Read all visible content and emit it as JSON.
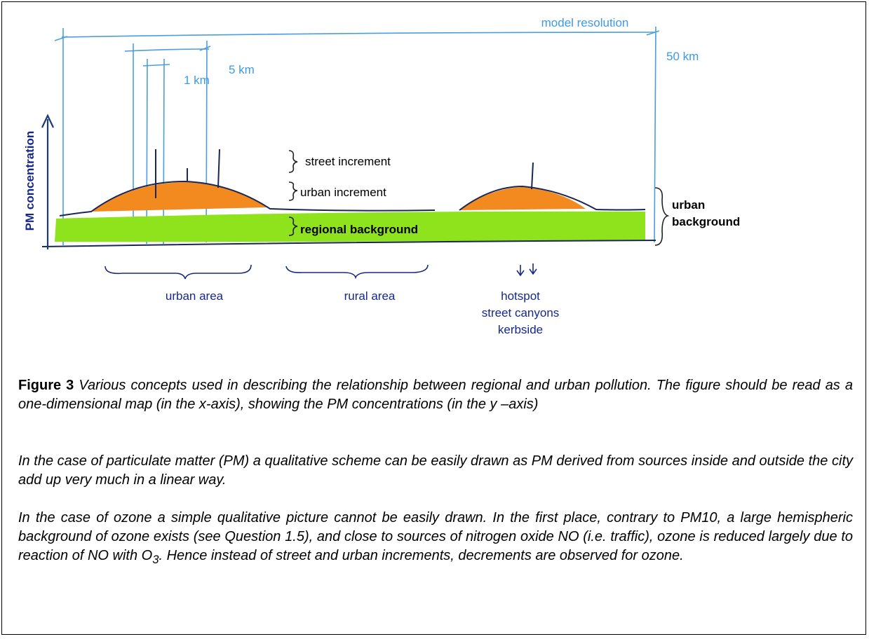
{
  "diagram": {
    "axis_label": "PM concentration",
    "model_resolution": "model resolution",
    "resolution_50km": "50 km",
    "resolution_5km": "5 km",
    "resolution_1km": "1 km",
    "street_increment": "street increment",
    "urban_increment": "urban increment",
    "regional_background": "regional background",
    "urban_background": [
      "urban",
      "background"
    ],
    "urban_area": "urban area",
    "rural_area": "rural area",
    "hotspot": [
      "hotspot",
      "street canyons",
      "kerbside"
    ]
  },
  "caption": {
    "label": "Figure 3",
    "text": "Various concepts used in describing the relationship between regional and urban pollution. The figure should be read as a one-dimensional map (in the x-axis), showing the PM concentrations (in the y –axis)"
  },
  "paragraphs": [
    {
      "text": "In the case of particulate matter (PM) a qualitative scheme can be easily drawn as PM derived from sources inside and outside the city add up very much in a linear way."
    },
    {
      "text": "In the case of ozone a simple qualitative picture cannot be easily drawn. In the first place, contrary to PM10, a large hemispheric background of ozone exists (see Question 1.5), and close to sources of nitrogen oxide NO (i.e. traffic), ozone is reduced largely due to reaction of NO with O",
      "subscript": "3",
      "text_after": ". Hence instead of street and urban increments, decrements are observed for ozone."
    }
  ]
}
